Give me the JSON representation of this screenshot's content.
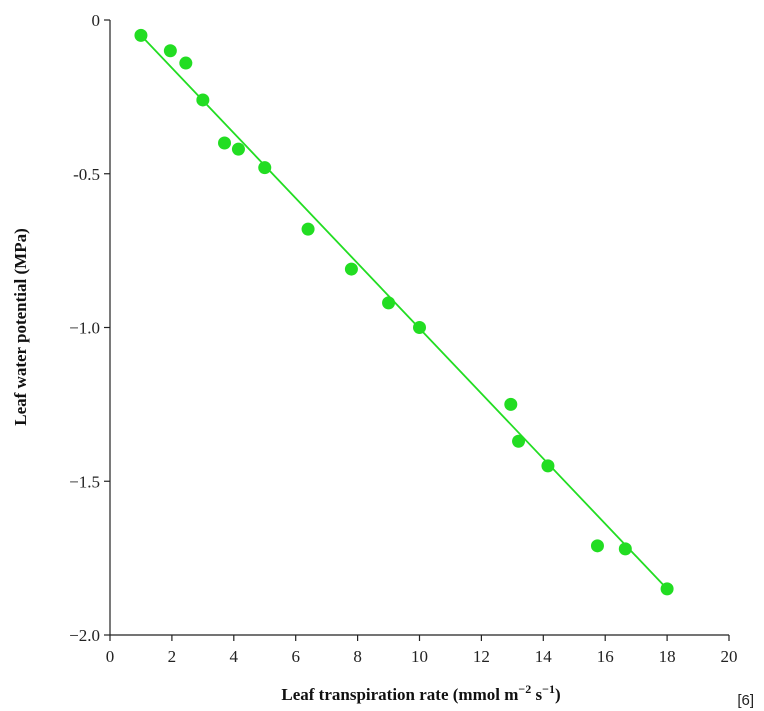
{
  "chart_data": {
    "type": "scatter",
    "title": "",
    "xlabel": "Leaf transpiration rate (mmol m",
    "xlabel_sup1": "−2",
    "xlabel_mid": " s",
    "xlabel_sup2": "−1",
    "xlabel_end": ")",
    "ylabel": "Leaf water potential (MPa)",
    "xlim": [
      0,
      20
    ],
    "ylim": [
      -2.0,
      0
    ],
    "x_ticks": [
      0,
      2,
      4,
      6,
      8,
      10,
      12,
      14,
      16,
      18,
      20
    ],
    "x_tick_labels": [
      "0",
      "2",
      "4",
      "6",
      "8",
      "10",
      "12",
      "14",
      "16",
      "18",
      "20"
    ],
    "y_ticks": [
      0,
      -0.5,
      -1.0,
      -1.5,
      -2.0
    ],
    "y_tick_labels": [
      "0",
      "-0.5",
      "−1.0",
      "−1.5",
      "−2.0"
    ],
    "grid": false,
    "series": [
      {
        "color": "#22dd22",
        "x": [
          1.0,
          1.95,
          2.45,
          3.0,
          3.7,
          4.15,
          5.0,
          6.4,
          7.8,
          9.0,
          10.0,
          12.95,
          13.2,
          14.15,
          15.75,
          16.65,
          18.0
        ],
        "y": [
          -0.05,
          -0.1,
          -0.14,
          -0.26,
          -0.4,
          -0.42,
          -0.48,
          -0.68,
          -0.81,
          -0.92,
          -1.0,
          -1.25,
          -1.37,
          -1.45,
          -1.71,
          -1.72,
          -1.85
        ]
      }
    ],
    "fit_line": {
      "color": "#22dd22",
      "x": [
        1.0,
        18.0
      ],
      "y": [
        -0.05,
        -1.85
      ]
    }
  },
  "note": "[6]"
}
